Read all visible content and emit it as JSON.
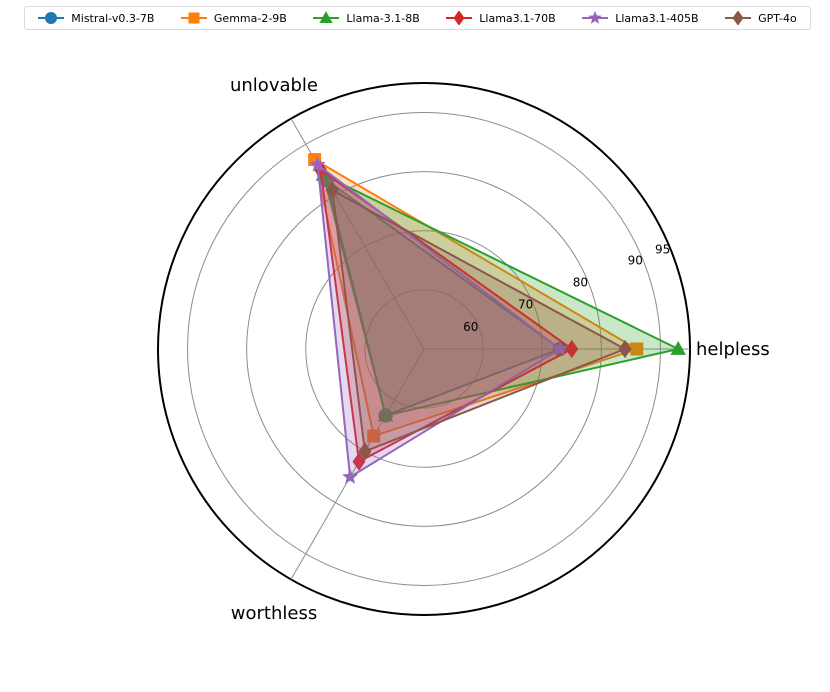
{
  "chart_data": {
    "type": "radar",
    "categories": [
      "helpless",
      "unlovable",
      "worthless"
    ],
    "rlim": [
      50,
      95
    ],
    "rticks": [
      60,
      70,
      80,
      90,
      95
    ],
    "grid": true,
    "legend_position": "top",
    "series": [
      {
        "name": "Mistral-v0.3-7B",
        "values": [
          73,
          83,
          63
        ],
        "color": "#1f77b4",
        "marker": "circle"
      },
      {
        "name": "Gemma-2-9B",
        "values": [
          86,
          87,
          67
        ],
        "color": "#ff7f0e",
        "marker": "square"
      },
      {
        "name": "Llama-3.1-8B",
        "values": [
          93,
          84,
          63
        ],
        "color": "#2ca02c",
        "marker": "triangle"
      },
      {
        "name": "Llama3.1-70B",
        "values": [
          75,
          85,
          72
        ],
        "color": "#d62728",
        "marker": "diamond"
      },
      {
        "name": "Llama3.1-405B",
        "values": [
          73,
          86,
          75
        ],
        "color": "#9467bd",
        "marker": "star"
      },
      {
        "name": "GPT-4o",
        "values": [
          84,
          81,
          70
        ],
        "color": "#8c564b",
        "marker": "diamond"
      }
    ]
  }
}
